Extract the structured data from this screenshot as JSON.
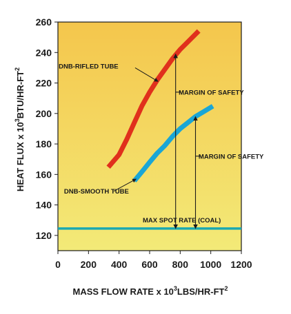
{
  "chart_data": {
    "type": "line",
    "xlabel": {
      "pre": "MASS FLOW RATE x 10",
      "sup": "3",
      "post": "LBS/HR-FT",
      "sup2": "2"
    },
    "ylabel": {
      "pre": "HEAT FLUX x 10",
      "sup": "3",
      "post": "BTU/HR-FT",
      "sup2": "2"
    },
    "xlim": [
      0,
      1200
    ],
    "ylim": [
      110,
      260
    ],
    "x_ticks": [
      0,
      200,
      400,
      600,
      800,
      1000,
      1200
    ],
    "y_ticks": [
      120,
      140,
      160,
      180,
      200,
      220,
      240,
      260
    ],
    "grid": false,
    "background_colors": {
      "top": "#f4c64c",
      "bottom": "#f3ea78"
    },
    "series": [
      {
        "name": "DNB-RIFLED TUBE",
        "color": "#e0301c",
        "x": [
          340,
          400,
          450,
          500,
          550,
          600,
          650,
          700,
          750,
          800,
          850,
          910
        ],
        "y": [
          166,
          173,
          183,
          194,
          205,
          214,
          222,
          229,
          236,
          242,
          247,
          253
        ]
      },
      {
        "name": "DNB-SMOOTH TUBE",
        "color": "#1aa6d6",
        "x": [
          510,
          560,
          600,
          650,
          700,
          750,
          800,
          850,
          900,
          950,
          1000
        ],
        "y": [
          157,
          163,
          168,
          174,
          179,
          185,
          190,
          194,
          198,
          201,
          204
        ]
      },
      {
        "name": "MAX SPOT RATE (COAL)",
        "color": "#1aa8b2",
        "x": [
          0,
          1200
        ],
        "y": [
          124.5,
          124.5
        ]
      }
    ],
    "annotations": [
      {
        "text": "DNB-RIFLED TUBE",
        "x": 5,
        "y": 231
      },
      {
        "text": "DNB-SMOOTH TUBE",
        "x": 40,
        "y": 149
      },
      {
        "text": "MAX SPOT RATE (COAL)",
        "x": 555,
        "y": 130
      },
      {
        "text": "MARGIN OF SAFETY",
        "x": 790,
        "y": 214
      },
      {
        "text": "MARGIN OF SAFETY",
        "x": 920,
        "y": 172
      }
    ],
    "leaders": [
      {
        "from": [
          505,
          230
        ],
        "to": [
          655,
          221
        ]
      },
      {
        "from": [
          365,
          149
        ],
        "to": [
          512,
          157
        ]
      }
    ],
    "margins": [
      {
        "label": "MARGIN OF SAFETY",
        "x": 770,
        "y_from": 124.5,
        "y_to": 239,
        "label_at": 214
      },
      {
        "label": "MARGIN OF SAFETY",
        "x": 900,
        "y_from": 124.5,
        "y_to": 198,
        "label_at": 172
      }
    ]
  }
}
